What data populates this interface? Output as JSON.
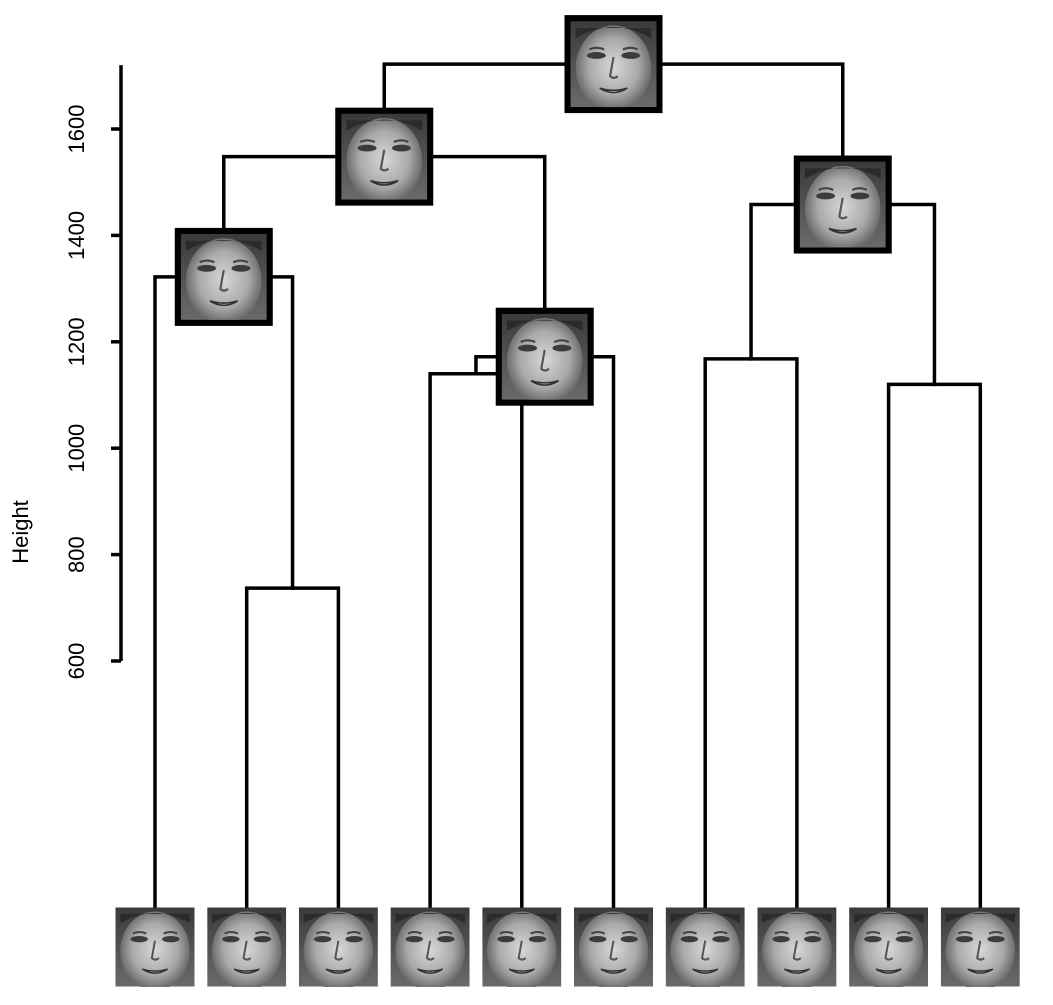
{
  "chart_data": {
    "type": "dendrogram",
    "ylabel": "Height",
    "yticks": [
      600,
      800,
      1000,
      1200,
      1400,
      1600
    ],
    "ylim": [
      600,
      1720
    ],
    "leaves": [
      1,
      2,
      3,
      4,
      5,
      6,
      7,
      8,
      9,
      10
    ],
    "merges": [
      {
        "id": "m1",
        "children": [
          "L2",
          "L3"
        ],
        "height": 737
      },
      {
        "id": "m2",
        "children": [
          "L1",
          "m1"
        ],
        "height": 1322
      },
      {
        "id": "m3",
        "children": [
          "L4",
          "L5"
        ],
        "height": 1140
      },
      {
        "id": "m4",
        "children": [
          "m3",
          "L6"
        ],
        "height": 1172
      },
      {
        "id": "m5",
        "children": [
          "m2",
          "m4"
        ],
        "height": 1548
      },
      {
        "id": "m6",
        "children": [
          "L7",
          "L8"
        ],
        "height": 1168
      },
      {
        "id": "m7",
        "children": [
          "L9",
          "L10"
        ],
        "height": 1120
      },
      {
        "id": "m8",
        "children": [
          "m6",
          "m7"
        ],
        "height": 1458
      },
      {
        "id": "m9",
        "children": [
          "m5",
          "m8"
        ],
        "height": 1722
      }
    ],
    "thumbnails": "face-image",
    "grid": false
  }
}
